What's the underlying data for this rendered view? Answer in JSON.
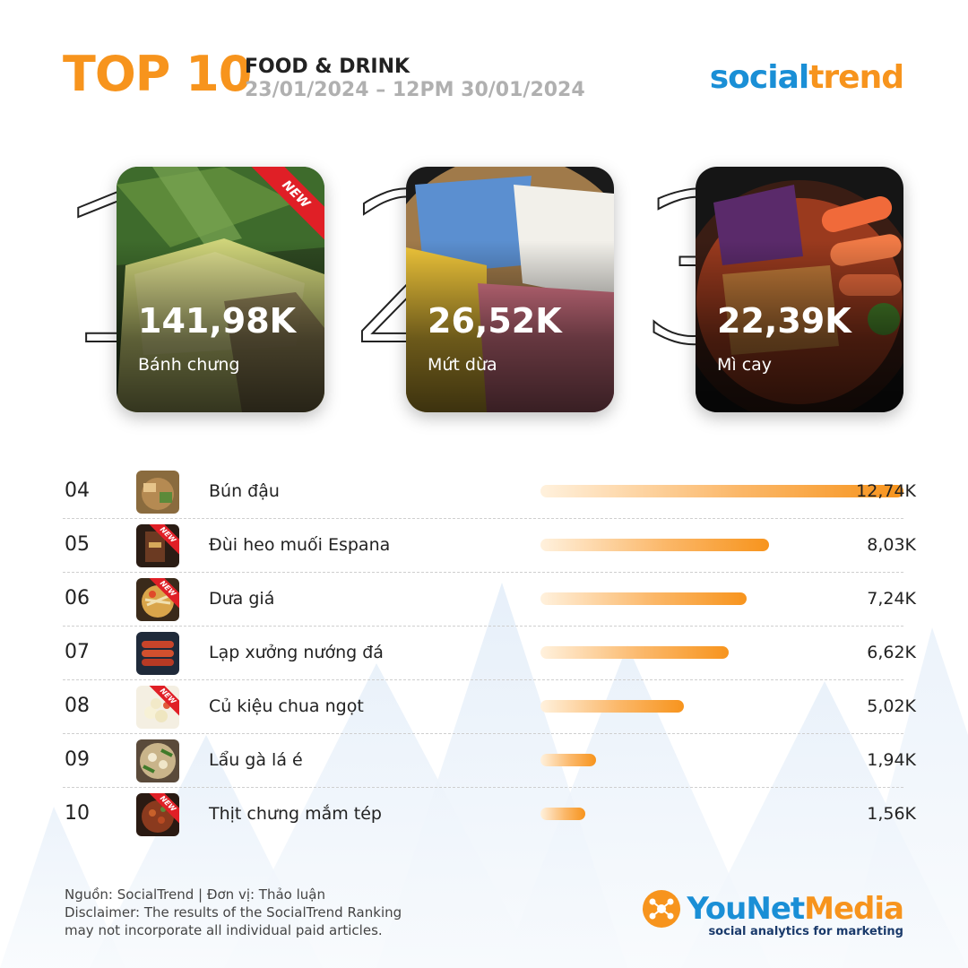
{
  "header": {
    "headline": "TOP 10",
    "category": "FOOD & DRINK",
    "period": "23/01/2024 – 12PM 30/01/2024"
  },
  "brand": {
    "part1": "social",
    "part2": "trend"
  },
  "colors": {
    "accent": "#f7941d",
    "brand_blue": "#1a8fd6",
    "new_badge": "#e01f26"
  },
  "top3": [
    {
      "rank": "1",
      "value": "141,98K",
      "name": "Bánh chưng",
      "badge": "NEW"
    },
    {
      "rank": "2",
      "value": "26,52K",
      "name": "Mứt dừa"
    },
    {
      "rank": "3",
      "value": "22,39K",
      "name": "Mì cay"
    }
  ],
  "list": [
    {
      "rank": "04",
      "name": "Bún đậu",
      "value": "12,74K"
    },
    {
      "rank": "05",
      "name": "Đùi heo muối Espana",
      "value": "8,03K",
      "badge": "NEW"
    },
    {
      "rank": "06",
      "name": "Dưa giá",
      "value": "7,24K",
      "badge": "NEW"
    },
    {
      "rank": "07",
      "name": "Lạp xưởng nướng đá",
      "value": "6,62K"
    },
    {
      "rank": "08",
      "name": "Củ kiệu chua ngọt",
      "value": "5,02K",
      "badge": "NEW"
    },
    {
      "rank": "09",
      "name": "Lẩu gà lá é",
      "value": "1,94K"
    },
    {
      "rank": "10",
      "name": "Thịt chưng mắm tép",
      "value": "1,56K",
      "badge": "NEW"
    }
  ],
  "chart_data": {
    "type": "bar",
    "categories": [
      "Bún đậu",
      "Đùi heo muối Espana",
      "Dưa giá",
      "Lạp xưởng nướng đá",
      "Củ kiệu chua ngọt",
      "Lẩu gà lá é",
      "Thịt chưng mắm tép"
    ],
    "values": [
      12.74,
      8.03,
      7.24,
      6.62,
      5.02,
      1.94,
      1.56
    ],
    "value_labels": [
      "12,74K",
      "8,03K",
      "7,24K",
      "6,62K",
      "5,02K",
      "1,94K",
      "1,56K"
    ],
    "orientation": "horizontal",
    "xlim": [
      0,
      12.74
    ],
    "grid": false
  },
  "footer": {
    "source": "Nguồn: SocialTrend |  Đơn vị: Thảo luận",
    "disclaimer_line1": "Disclaimer: The results of the SocialTrend Ranking",
    "disclaimer_line2": "may not incorporate all individual paid articles."
  },
  "younet": {
    "part1": "YouNet",
    "part2": "Media",
    "tagline": "social analytics for marketing"
  }
}
